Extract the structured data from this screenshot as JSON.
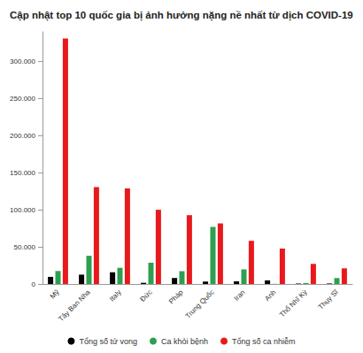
{
  "chart_data": {
    "type": "bar",
    "title": "Cập nhật top 10 quốc gia bị ảnh hưởng nặng nề nhất từ dịch COVID-19",
    "categories": [
      "Mỹ",
      "Tây Ban Nha",
      "Italy",
      "Đức",
      "Pháp",
      "Trung Quốc",
      "Iran",
      "Anh",
      "Thổ Nhĩ Kỳ",
      "Thụy Sĩ"
    ],
    "series": [
      {
        "name": "Tổng số tử vong",
        "color": "#000000",
        "values": [
          9600,
          12600,
          15900,
          1600,
          8100,
          3300,
          3600,
          4900,
          600,
          700
        ]
      },
      {
        "name": "Ca khỏi bệnh",
        "color": "#2e9e4f",
        "values": [
          17500,
          38000,
          21800,
          28700,
          17300,
          77000,
          19700,
          200,
          1300,
          8000
        ]
      },
      {
        "name": "Tổng số ca nhiễm",
        "color": "#e8191c",
        "values": [
          331000,
          130700,
          128900,
          100100,
          92800,
          81700,
          58200,
          47800,
          27100,
          21100
        ]
      }
    ],
    "ylim": [
      0,
      340000
    ],
    "yticks": [
      0,
      {
        "value": 50000,
        "label": "50.000"
      },
      {
        "value": 100000,
        "label": "100.000"
      },
      {
        "value": 150000,
        "label": "150.000"
      },
      {
        "value": 200000,
        "label": "200.000"
      },
      {
        "value": 250000,
        "label": "250.000"
      },
      {
        "value": 300000,
        "label": "300.000"
      }
    ],
    "grid": false,
    "legend": "bottom"
  }
}
